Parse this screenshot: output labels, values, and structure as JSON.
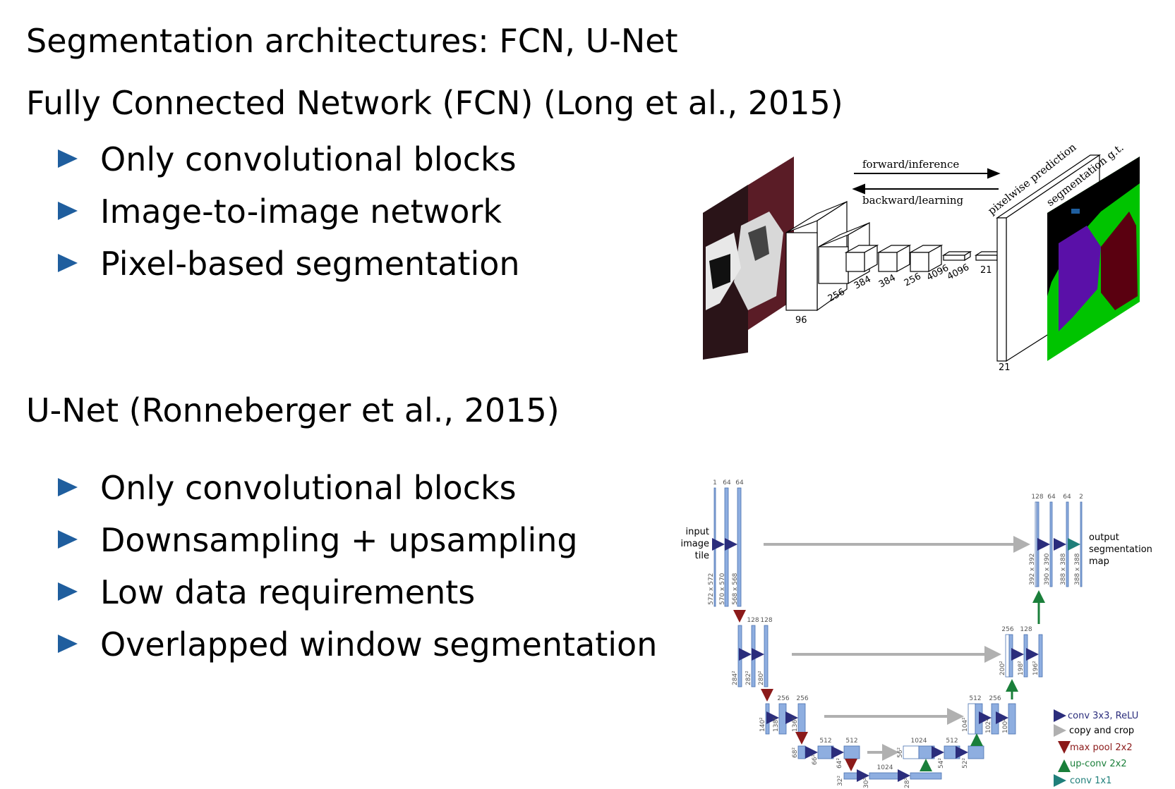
{
  "slide": {
    "title": "Segmentation architectures: FCN, U-Net",
    "fcn": {
      "heading": "Fully Connected Network (FCN) (Long et al., 2015)",
      "bullets": [
        "Only convolutional blocks",
        "Image-to-image network",
        "Pixel-based segmentation"
      ]
    },
    "unet": {
      "heading": "U-Net (Ronneberger et al., 2015)",
      "bullets": [
        "Only convolutional blocks",
        "Downsampling + upsampling",
        "Low data requirements",
        "Overlapped window segmentation"
      ]
    }
  },
  "fcn_figure": {
    "forward_label": "forward/inference",
    "backward_label": "backward/learning",
    "prediction_label": "pixelwise prediction",
    "gt_label": "segmentation g.t.",
    "layer_labels": [
      "96",
      "256",
      "384",
      "384",
      "256",
      "4096",
      "4096",
      "21",
      "21"
    ]
  },
  "unet_figure": {
    "input_label": [
      "input",
      "image",
      "tile"
    ],
    "output_label": [
      "output",
      "segmentation",
      "map"
    ],
    "channels": {
      "l1": [
        "1",
        "64",
        "64"
      ],
      "l2": [
        "128",
        "128"
      ],
      "l3": [
        "256",
        "256"
      ],
      "l4": [
        "512",
        "512"
      ],
      "l5": "1024",
      "u4": [
        "1024",
        "512"
      ],
      "u3": [
        "512",
        "256"
      ],
      "u2": [
        "256",
        "128"
      ],
      "u1": [
        "128",
        "64",
        "64",
        "2"
      ]
    },
    "sizes": {
      "l1": [
        "572 x 572",
        "570 x 570",
        "568 x 568"
      ],
      "l2": [
        "284²",
        "282²",
        "280²"
      ],
      "l3": [
        "140²",
        "138²",
        "136²"
      ],
      "l4": [
        "68²",
        "66²",
        "64²"
      ],
      "l5": [
        "32²",
        "30²",
        "28²"
      ],
      "u4": [
        "56²",
        "54²",
        "52²"
      ],
      "u3": [
        "104²",
        "102²",
        "100²"
      ],
      "u2": [
        "200²",
        "198²",
        "196²"
      ],
      "u1": [
        "392 x 392",
        "390 x 390",
        "388 x 388",
        "388 x 388"
      ]
    },
    "legend": [
      {
        "label": "conv 3x3, ReLU",
        "color": "#2b2d7c"
      },
      {
        "label": "copy and crop",
        "color": "#b0b0b0"
      },
      {
        "label": "max pool 2x2",
        "color": "#8b1a1a"
      },
      {
        "label": "up-conv 2x2",
        "color": "#1a7f3a"
      },
      {
        "label": "conv 1x1",
        "color": "#1f7f7a"
      }
    ]
  }
}
